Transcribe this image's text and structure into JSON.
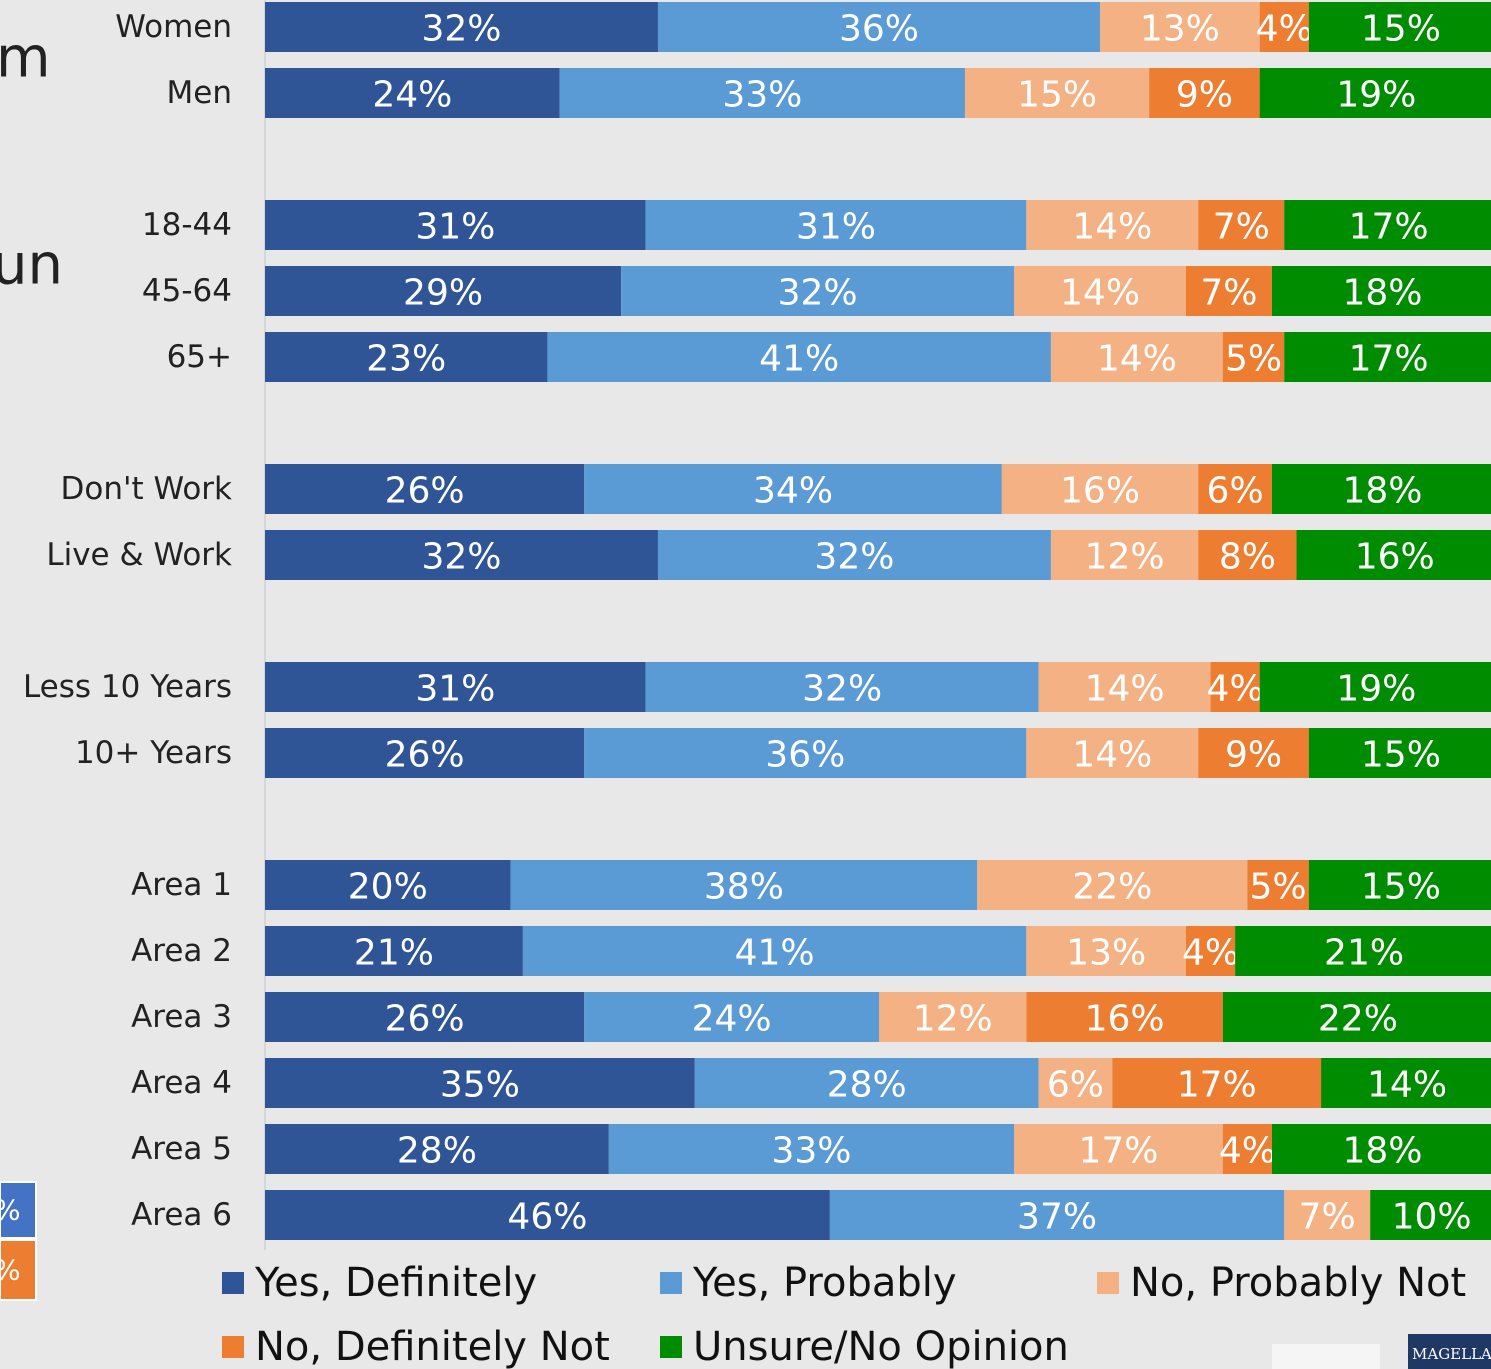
{
  "chart_data": {
    "type": "stacked-bar-horizontal",
    "categories": [
      "Women",
      "Men",
      null,
      "18-44",
      "45-64",
      "65+",
      null,
      "Don't Work",
      "Live & Work",
      null,
      "Less 10 Years",
      "10+ Years",
      null,
      "Area 1",
      "Area 2",
      "Area 3",
      "Area 4",
      "Area 5",
      "Area 6"
    ],
    "xlim": [
      0,
      100
    ],
    "series": [
      {
        "name": "Yes, Definitely",
        "color": "#2f5597",
        "values": [
          32,
          24,
          null,
          31,
          29,
          23,
          null,
          26,
          32,
          null,
          31,
          26,
          null,
          20,
          21,
          26,
          35,
          28,
          46
        ],
        "value_labels": [
          "32%",
          "24%",
          null,
          "31%",
          "29%",
          "23%",
          null,
          "26%",
          "32%",
          null,
          "31%",
          "26%",
          null,
          "20%",
          "21%",
          "26%",
          "35%",
          "28%",
          "46%"
        ]
      },
      {
        "name": "Yes, Probably",
        "color": "#5b9bd5",
        "values": [
          36,
          33,
          null,
          31,
          32,
          41,
          null,
          34,
          32,
          null,
          32,
          36,
          null,
          38,
          41,
          24,
          28,
          33,
          37
        ],
        "value_labels": [
          "36%",
          "33%",
          null,
          "31%",
          "32%",
          "41%",
          null,
          "34%",
          "32%",
          null,
          "32%",
          "36%",
          null,
          "38%",
          "41%",
          "24%",
          "28%",
          "33%",
          "37%"
        ]
      },
      {
        "name": "No, Probably Not",
        "color": "#f4b183",
        "values": [
          13,
          15,
          null,
          14,
          14,
          14,
          null,
          16,
          12,
          null,
          14,
          14,
          null,
          22,
          13,
          12,
          6,
          17,
          7
        ],
        "value_labels": [
          "13%",
          "15%",
          null,
          "14%",
          "14%",
          "14%",
          null,
          "16%",
          "12%",
          null,
          "14%",
          "14%",
          null,
          "22%",
          "13%",
          "12%",
          "6%",
          "17%",
          "7%"
        ]
      },
      {
        "name": "No, Definitely Not",
        "color": "#ed7d31",
        "values": [
          4,
          9,
          null,
          7,
          7,
          5,
          null,
          6,
          8,
          null,
          4,
          9,
          null,
          5,
          4,
          16,
          17,
          4,
          null
        ],
        "value_labels": [
          "4%",
          "9%",
          null,
          "7%",
          "7%",
          "5%",
          null,
          "6%",
          "8%",
          null,
          "4%",
          "9%",
          null,
          "5%",
          "4%",
          "16%",
          "17%",
          "4%",
          null
        ]
      },
      {
        "name": "Unsure/No Opinion",
        "color": "#008c00",
        "values": [
          15,
          19,
          null,
          17,
          18,
          17,
          null,
          18,
          16,
          null,
          19,
          15,
          null,
          15,
          21,
          22,
          14,
          18,
          10
        ],
        "value_labels": [
          "15%",
          "19%",
          null,
          "17%",
          "18%",
          "17%",
          null,
          "18%",
          "16%",
          null,
          "19%",
          "15%",
          null,
          "15%",
          "21%",
          "22%",
          "14%",
          "18%",
          "10%"
        ]
      }
    ]
  },
  "fragments": [
    "m",
    "un",
    "%",
    "%"
  ],
  "logo": "MAGELLA"
}
